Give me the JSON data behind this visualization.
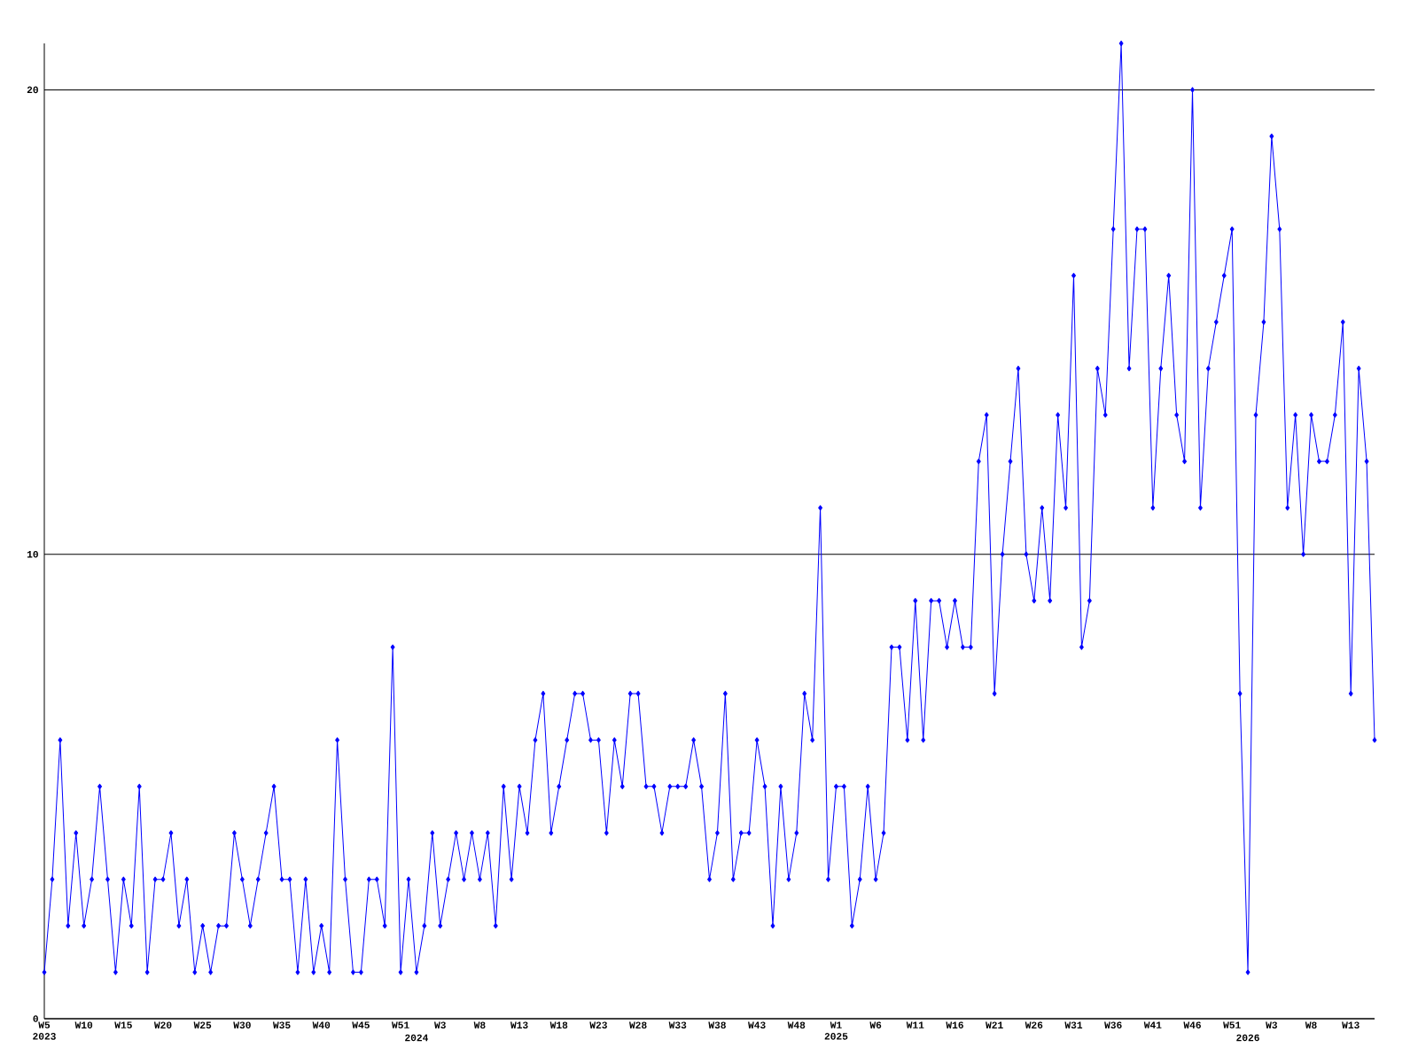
{
  "chart_data": {
    "type": "line",
    "color": "#0000ff",
    "marker": "diamond",
    "line_style": "solid",
    "grid": "y",
    "ylim": [
      0,
      21
    ],
    "yticks": [
      0,
      10,
      20
    ],
    "categories": [
      "W5\n2023",
      null,
      null,
      null,
      null,
      "W10",
      null,
      null,
      null,
      null,
      "W15",
      null,
      null,
      null,
      null,
      "W20",
      null,
      null,
      null,
      null,
      "W25",
      null,
      null,
      null,
      null,
      "W30",
      null,
      null,
      null,
      null,
      "W35",
      null,
      null,
      null,
      null,
      "W40",
      null,
      null,
      null,
      null,
      "W45",
      null,
      null,
      null,
      null,
      "W51",
      null,
      "\n2024",
      null,
      null,
      "W3",
      null,
      null,
      null,
      null,
      "W8",
      null,
      null,
      null,
      null,
      "W13",
      null,
      null,
      null,
      null,
      "W18",
      null,
      null,
      null,
      null,
      "W23",
      null,
      null,
      null,
      null,
      "W28",
      null,
      null,
      null,
      null,
      "W33",
      null,
      null,
      null,
      null,
      "W38",
      null,
      null,
      null,
      null,
      "W43",
      null,
      null,
      null,
      null,
      "W48",
      null,
      null,
      null,
      null,
      "W1\n2025",
      null,
      null,
      null,
      null,
      "W6",
      null,
      null,
      null,
      null,
      "W11",
      null,
      null,
      null,
      null,
      "W16",
      null,
      null,
      null,
      null,
      "W21",
      null,
      null,
      null,
      null,
      "W26",
      null,
      null,
      null,
      null,
      "W31",
      null,
      null,
      null,
      null,
      "W36",
      null,
      null,
      null,
      null,
      "W41",
      null,
      null,
      null,
      null,
      "W46",
      null,
      null,
      null,
      null,
      "W51",
      null,
      "\n2026",
      null,
      null,
      "W3",
      null,
      null,
      null,
      null,
      "W8",
      null,
      null,
      null,
      null,
      "W13",
      null,
      null,
      null
    ],
    "values": [
      1,
      3,
      6,
      2,
      4,
      2,
      3,
      5,
      3,
      1,
      3,
      2,
      5,
      1,
      3,
      3,
      4,
      2,
      3,
      1,
      2,
      1,
      2,
      2,
      4,
      3,
      2,
      3,
      4,
      5,
      3,
      3,
      1,
      3,
      1,
      2,
      1,
      6,
      3,
      1,
      1,
      3,
      3,
      2,
      8,
      1,
      3,
      1,
      2,
      4,
      2,
      3,
      4,
      3,
      4,
      3,
      4,
      2,
      5,
      3,
      5,
      4,
      6,
      7,
      4,
      5,
      6,
      7,
      7,
      6,
      6,
      4,
      6,
      5,
      7,
      7,
      5,
      5,
      4,
      5,
      5,
      5,
      6,
      5,
      3,
      4,
      7,
      3,
      4,
      4,
      6,
      5,
      2,
      5,
      3,
      4,
      7,
      6,
      11,
      3,
      5,
      5,
      2,
      3,
      5,
      3,
      4,
      8,
      8,
      6,
      9,
      6,
      9,
      9,
      8,
      9,
      8,
      8,
      12,
      13,
      7,
      10,
      12,
      14,
      10,
      9,
      11,
      9,
      13,
      11,
      16,
      8,
      9,
      14,
      13,
      17,
      21,
      14,
      17,
      17,
      11,
      14,
      16,
      13,
      12,
      20,
      11,
      14,
      15,
      16,
      17,
      7,
      1,
      13,
      15,
      19,
      17,
      11,
      13,
      10,
      13,
      12,
      12,
      13,
      15,
      7,
      14,
      12,
      6
    ]
  }
}
